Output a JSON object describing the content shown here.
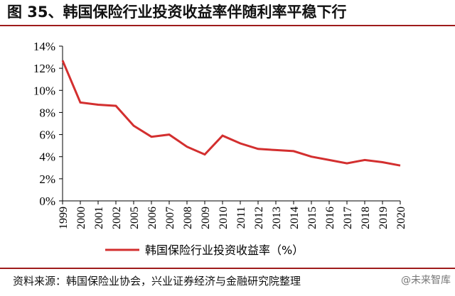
{
  "page": {
    "title": "图 35、韩国保险行业投资收益率伴随利率平稳下行",
    "source": "资料来源：韩国保险业协会，兴业证券经济与金融研究院整理",
    "watermark": "@未来智库"
  },
  "chart_data": {
    "type": "line",
    "title": "",
    "xlabel": "",
    "ylabel": "",
    "categories": [
      "1999",
      "2000",
      "2001",
      "2002",
      "2005",
      "2006",
      "2007",
      "2008",
      "2009",
      "2010",
      "2011",
      "2012",
      "2013",
      "2014",
      "2015",
      "2016",
      "2017",
      "2018",
      "2019",
      "2020"
    ],
    "series": [
      {
        "name": "韩国保险行业投资收益率（%）",
        "color": "#d32f2f",
        "values": [
          12.7,
          8.9,
          8.7,
          8.6,
          6.8,
          5.8,
          6.0,
          4.9,
          4.2,
          5.9,
          5.2,
          4.7,
          4.6,
          4.5,
          4.0,
          3.7,
          3.4,
          3.7,
          3.5,
          3.2
        ]
      }
    ],
    "ylim": [
      0,
      14
    ],
    "yticks": [
      0,
      2,
      4,
      6,
      8,
      10,
      12,
      14
    ],
    "ytick_labels": [
      "0%",
      "2%",
      "4%",
      "6%",
      "8%",
      "10%",
      "12%",
      "14%"
    ],
    "grid": false,
    "legend": "bottom-center"
  }
}
